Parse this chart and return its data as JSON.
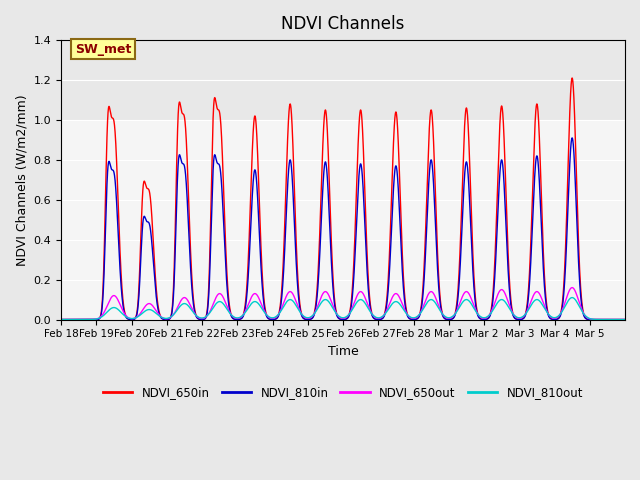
{
  "title": "NDVI Channels",
  "ylabel": "NDVI Channels (W/m2/mm)",
  "xlabel": "Time",
  "annotation_text": "SW_met",
  "annotation_bg": "#FFFF99",
  "annotation_border": "#8B6914",
  "legend_labels": [
    "NDVI_650in",
    "NDVI_810in",
    "NDVI_650out",
    "NDVI_810out"
  ],
  "legend_colors": [
    "#FF0000",
    "#0000CC",
    "#FF00FF",
    "#00CCCC"
  ],
  "ylim": [
    0,
    1.4
  ],
  "background_color": "#E8E8E8",
  "plot_bg": "#F5F5F5",
  "x_tick_labels": [
    "Feb 18",
    "Feb 19",
    "Feb 20",
    "Feb 21",
    "Feb 22",
    "Feb 23",
    "Feb 24",
    "Feb 25",
    "Feb 26",
    "Feb 27",
    "Feb 28",
    "Mar 1",
    "Mar 2",
    "Mar 3",
    "Mar 4",
    "Mar 5"
  ],
  "num_days": 16,
  "peaks_650in": [
    0.97,
    0.63,
    0.99,
    1.01,
    1.02,
    1.08,
    1.05,
    1.05,
    1.04,
    1.05,
    1.06,
    1.07,
    1.08,
    1.21
  ],
  "peaks_810in": [
    0.72,
    0.47,
    0.75,
    0.75,
    0.75,
    0.8,
    0.79,
    0.78,
    0.77,
    0.8,
    0.79,
    0.8,
    0.82,
    0.91
  ],
  "peaks_650out": [
    0.12,
    0.08,
    0.11,
    0.13,
    0.13,
    0.14,
    0.14,
    0.14,
    0.13,
    0.14,
    0.14,
    0.15,
    0.14,
    0.16
  ],
  "peaks_810out": [
    0.06,
    0.05,
    0.08,
    0.09,
    0.09,
    0.1,
    0.1,
    0.1,
    0.09,
    0.1,
    0.1,
    0.1,
    0.1,
    0.11
  ]
}
